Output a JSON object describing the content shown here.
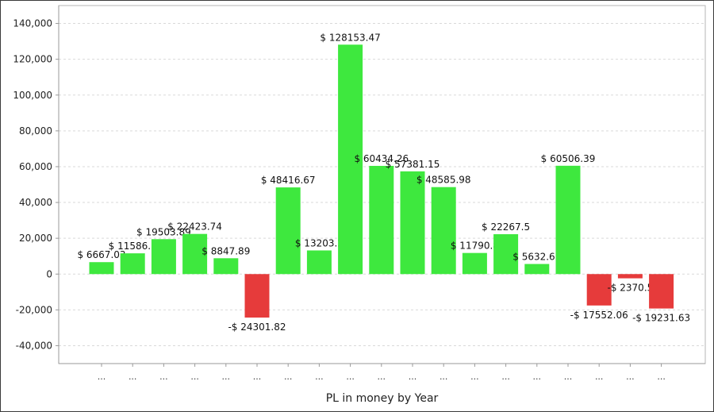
{
  "chart_data": {
    "type": "bar",
    "title": "",
    "xlabel": "PL in money by Year",
    "ylabel": "",
    "ylim": [
      -50000,
      150000
    ],
    "yticks": [
      -40000,
      -20000,
      0,
      20000,
      40000,
      60000,
      80000,
      100000,
      120000,
      140000
    ],
    "ytick_labels": [
      "-40,000",
      "-20,000",
      "0",
      "20,000",
      "40,000",
      "60,000",
      "80,000",
      "100,000",
      "120,000",
      "140,000"
    ],
    "grid": true,
    "categories": [
      "...",
      "...",
      "...",
      "...",
      "...",
      "...",
      "...",
      "...",
      "...",
      "...",
      "...",
      "...",
      "...",
      "...",
      "...",
      "...",
      "...",
      "...",
      "..."
    ],
    "values": [
      6667.03,
      11586.3,
      19503.89,
      22423.74,
      8847.89,
      -24301.82,
      48416.67,
      13203.2,
      128153.47,
      60434.26,
      57381.15,
      48585.98,
      11790.8,
      22267.5,
      5632.69,
      60506.39,
      -17552.06,
      -2370.5,
      -19231.63
    ],
    "data_labels": [
      "$ 6667.03",
      "$ 11586.3",
      "$ 19503.89",
      "$ 22423.74",
      "$ 8847.89",
      "-$ 24301.82",
      "$ 48416.67",
      "$ 13203.2",
      "$ 128153.47",
      "$ 60434.26",
      "$ 57381.15",
      "$ 48585.98",
      "$ 11790.8",
      "$ 22267.5",
      "$ 5632.69",
      "$ 60506.39",
      "-$ 17552.06",
      "-$ 2370.5",
      "-$ 19231.63"
    ],
    "colors": {
      "positive": "#3ee83e",
      "negative": "#e63b3b",
      "grid": "#d9d9d9",
      "axis": "#999999"
    }
  }
}
